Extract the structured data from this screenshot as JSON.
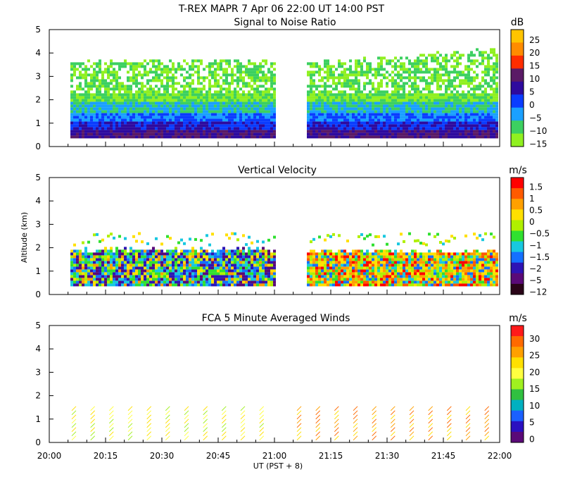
{
  "header": {
    "line1": "T-REX  MAPR  7 Apr 06  22:00 UT  14:00  PST"
  },
  "time_axis": {
    "label": "UT  (PST + 8)",
    "ticks": [
      "20:00",
      "20:15",
      "20:30",
      "20:45",
      "21:00",
      "21:15",
      "21:30",
      "21:45",
      "22:00"
    ]
  },
  "y_axis_label": "Altitude (km)",
  "chart_data": [
    {
      "type": "heatmap",
      "title": "Signal to Noise Ratio",
      "xlabel": "UT  (PST + 8)",
      "ylabel": "Altitude (km)",
      "xlim": [
        "20:00",
        "22:00"
      ],
      "ylim": [
        0,
        5
      ],
      "yticks": [
        "0",
        "1",
        "2",
        "3",
        "4",
        "5"
      ],
      "data_gap": [
        "21:00",
        "21:05"
      ],
      "colorbar": {
        "unit": "dB",
        "labels": [
          "25",
          "20",
          "15",
          "10",
          "5",
          "0",
          "−5",
          "−10",
          "−15"
        ],
        "colors": [
          "#ffc400",
          "#ff8c00",
          "#ff2d00",
          "#5a1a66",
          "#2e0a9e",
          "#0a3cff",
          "#1aa0ff",
          "#3cd060",
          "#90f020"
        ]
      }
    },
    {
      "type": "heatmap",
      "title": "Vertical Velocity",
      "xlabel": "UT  (PST + 8)",
      "ylabel": "Altitude (km)",
      "xlim": [
        "20:00",
        "22:00"
      ],
      "ylim": [
        0,
        5
      ],
      "yticks": [
        "0",
        "1",
        "2",
        "3",
        "4",
        "5"
      ],
      "data_gap": [
        "21:00",
        "21:05"
      ],
      "colorbar": {
        "unit": "m/s",
        "labels": [
          "1.5",
          "1",
          "0.5",
          "0",
          "−0.5",
          "−1",
          "−1.5",
          "−2",
          "−5",
          "−12"
        ],
        "colors": [
          "#ff0000",
          "#ff5a00",
          "#ffa000",
          "#ffe000",
          "#b0f000",
          "#30e030",
          "#18c8e0",
          "#1470ff",
          "#2e14b4",
          "#5a0a78",
          "#2a0418"
        ]
      }
    },
    {
      "type": "scatter",
      "title": "FCA 5 Minute Averaged Winds",
      "xlabel": "UT  (PST + 8)",
      "ylabel": "Altitude (km)",
      "xlim": [
        "20:00",
        "22:00"
      ],
      "ylim": [
        0,
        5
      ],
      "yticks": [
        "0",
        "1",
        "2",
        "3",
        "4",
        "5"
      ],
      "colorbar": {
        "unit": "m/s",
        "labels": [
          "30",
          "25",
          "20",
          "15",
          "10",
          "5",
          "0"
        ],
        "colors": [
          "#ff1a1a",
          "#ff6a00",
          "#ffa000",
          "#ffe000",
          "#ffff40",
          "#a0f020",
          "#30c040",
          "#00b0c0",
          "#1a60ff",
          "#2a10c0",
          "#5a0a78"
        ]
      }
    }
  ]
}
